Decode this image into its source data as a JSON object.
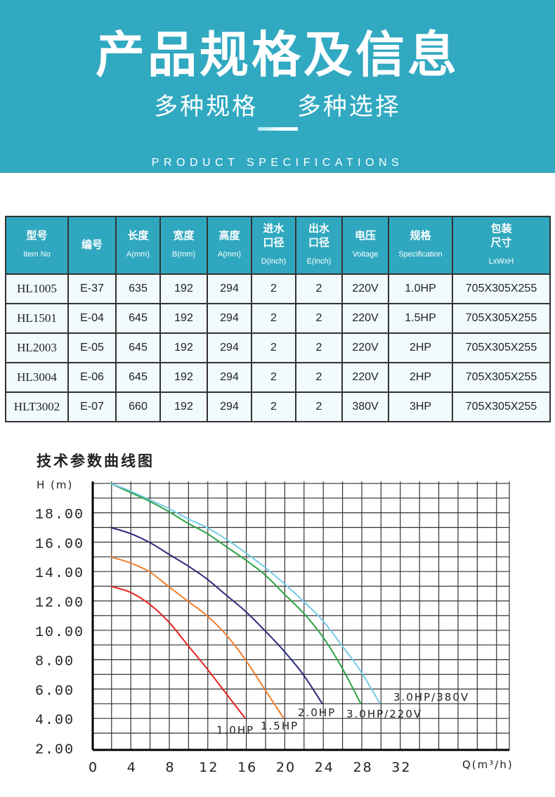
{
  "header": {
    "title": "产品规格及信息",
    "subtitle": "多种规格  多种选择",
    "english": "PRODUCT SPECIFICATIONS"
  },
  "table": {
    "columns": [
      {
        "cn": "型号",
        "en": "Item No"
      },
      {
        "cn": "编号",
        "en": ""
      },
      {
        "cn": "长度",
        "en": "A(mm)"
      },
      {
        "cn": "宽度",
        "en": "B(mm)"
      },
      {
        "cn": "高度",
        "en": "A(mm)"
      },
      {
        "cn": "进水口径",
        "en": "D(inch)"
      },
      {
        "cn": "出水口径",
        "en": "E(inch)"
      },
      {
        "cn": "电压",
        "en": "Voitage"
      },
      {
        "cn": "规格",
        "en": "Specification"
      },
      {
        "cn": "包装尺寸",
        "en": "LxWxH"
      }
    ],
    "rows": [
      [
        "HL1005",
        "E-37",
        "635",
        "192",
        "294",
        "2",
        "2",
        "220V",
        "1.0HP",
        "705X305X255"
      ],
      [
        "HL1501",
        "E-04",
        "645",
        "192",
        "294",
        "2",
        "2",
        "220V",
        "1.5HP",
        "705X305X255"
      ],
      [
        "HL2003",
        "E-05",
        "645",
        "192",
        "294",
        "2",
        "2",
        "220V",
        "2HP",
        "705X305X255"
      ],
      [
        "HL3004",
        "E-06",
        "645",
        "192",
        "294",
        "2",
        "2",
        "220V",
        "2HP",
        "705X305X255"
      ],
      [
        "HLT3002",
        "E-07",
        "660",
        "192",
        "294",
        "2",
        "2",
        "380V",
        "3HP",
        "705X305X255"
      ]
    ]
  },
  "chart_data": {
    "type": "line",
    "title": "技术参数曲线图",
    "xlabel": "Q(m³/h)",
    "ylabel": "H (m)",
    "xlim": [
      0,
      43.4
    ],
    "ylim": [
      2,
      20
    ],
    "xticks": [
      0,
      4,
      8,
      12,
      16,
      20,
      24,
      28,
      32
    ],
    "yticks": [
      "2.00",
      "4.00",
      "6.00",
      "8.00",
      "10.00",
      "12.00",
      "14.00",
      "16.00",
      "18.00"
    ],
    "grid": true,
    "series": [
      {
        "name": "1.0HP",
        "color": "#e8231f",
        "x": [
          2,
          4,
          6,
          8,
          10,
          12,
          14,
          16
        ],
        "y": [
          13,
          12.6,
          11.8,
          10.6,
          9,
          7.4,
          5.7,
          4
        ]
      },
      {
        "name": "1.5HP",
        "color": "#ef7d2c",
        "x": [
          2,
          4,
          6,
          8,
          10,
          12,
          14,
          16,
          18,
          20
        ],
        "y": [
          15,
          14.6,
          14,
          13,
          12,
          11,
          9.7,
          8,
          6,
          4
        ]
      },
      {
        "name": "2.0HP",
        "color": "#2c2a7c",
        "x": [
          2,
          4,
          6,
          8,
          10,
          12,
          14,
          16,
          18,
          20,
          22,
          24
        ],
        "y": [
          17,
          16.6,
          16,
          15.2,
          14.4,
          13.5,
          12.4,
          11.3,
          10,
          8.6,
          7,
          5
        ]
      },
      {
        "name": "3.0HP/220V",
        "color": "#2ea243",
        "x": [
          2,
          4,
          6,
          8,
          10,
          12,
          14,
          16,
          18,
          20,
          22,
          24,
          26,
          28
        ],
        "y": [
          20,
          19.4,
          18.8,
          18.1,
          17.3,
          16.6,
          15.7,
          14.8,
          13.8,
          12.5,
          11.2,
          9.6,
          7.5,
          5
        ]
      },
      {
        "name": "3.0HP/380V",
        "color": "#74cbe8",
        "x": [
          2,
          4,
          6,
          8,
          10,
          12,
          14,
          16,
          18,
          20,
          22,
          24,
          26,
          28,
          30
        ],
        "y": [
          20,
          19.5,
          18.9,
          18.3,
          17.6,
          17,
          16.2,
          15.3,
          14.3,
          13.2,
          12,
          10.7,
          9,
          7.2,
          5
        ]
      }
    ]
  }
}
